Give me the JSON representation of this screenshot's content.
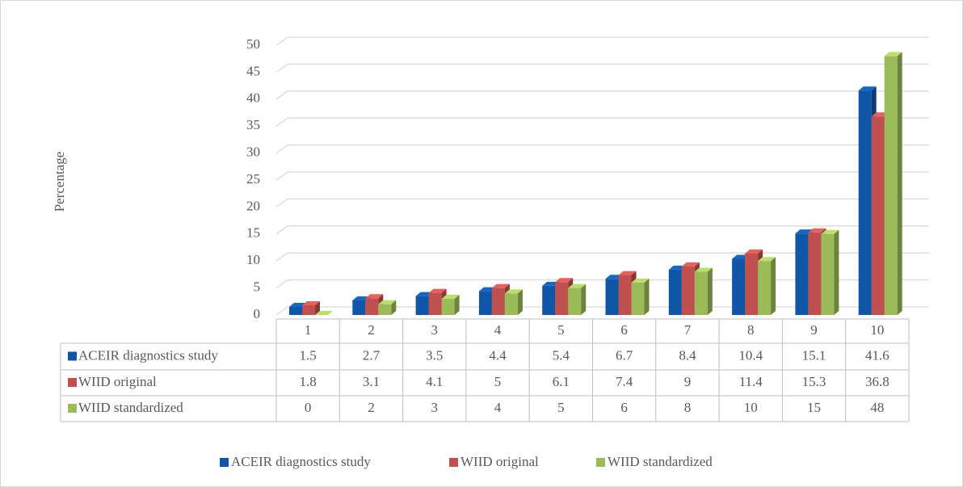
{
  "chart_data": {
    "type": "bar3d",
    "y_label": "Percentage",
    "categories": [
      1,
      2,
      3,
      4,
      5,
      6,
      7,
      8,
      9,
      10
    ],
    "series": [
      {
        "name": "ACEIR diagnostics study",
        "color": "#0f56a6",
        "values": [
          1.5,
          2.7,
          3.5,
          4.4,
          5.4,
          6.7,
          8.4,
          10.4,
          15.1,
          41.6
        ]
      },
      {
        "name": "WIID original",
        "color": "#c0504d",
        "values": [
          1.8,
          3.1,
          4.1,
          5,
          6.1,
          7.4,
          9,
          11.4,
          15.3,
          36.8
        ]
      },
      {
        "name": "WIID standardized",
        "color": "#9bbb59",
        "values": [
          0,
          2,
          3,
          4,
          5,
          6,
          8,
          10,
          15,
          48
        ]
      }
    ],
    "ylim": [
      0,
      50
    ],
    "yticks": [
      0,
      5,
      10,
      15,
      20,
      25,
      30,
      35,
      40,
      45,
      50
    ],
    "grid": true
  }
}
